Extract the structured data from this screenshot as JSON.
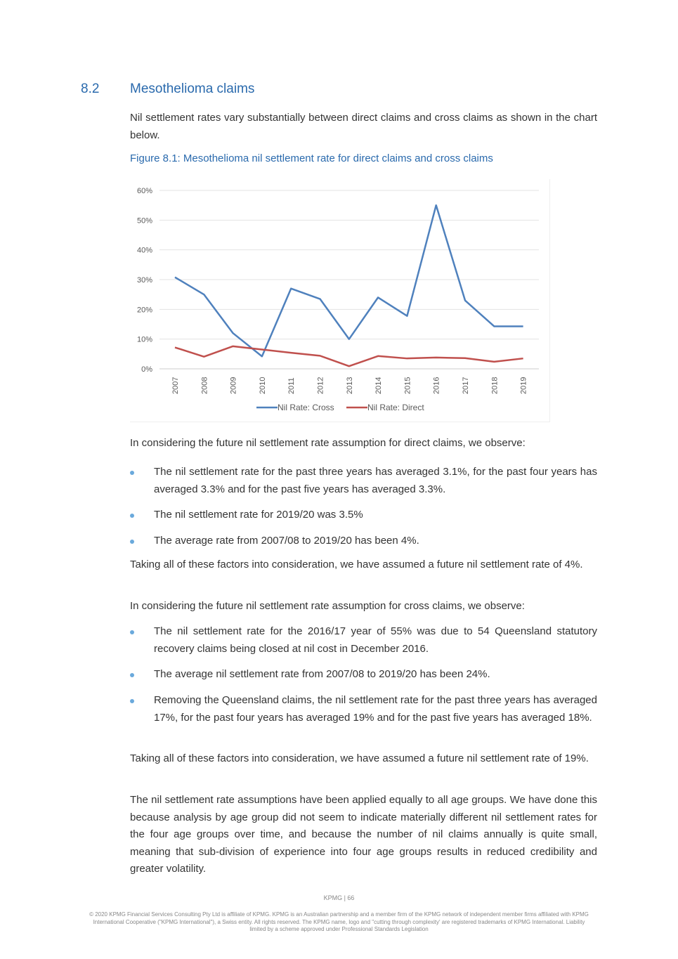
{
  "section": {
    "number": "8.2",
    "title": "Mesothelioma claims"
  },
  "intro": "Nil settlement rates vary substantially between direct claims and cross claims as shown in the chart below.",
  "figure_caption": "Figure 8.1: Mesothelioma nil settlement rate for direct claims and cross claims",
  "chart_data": {
    "type": "line",
    "categories": [
      "2007",
      "2008",
      "2009",
      "2010",
      "2011",
      "2012",
      "2013",
      "2014",
      "2015",
      "2016",
      "2017",
      "2018",
      "2019"
    ],
    "series": [
      {
        "name": "Nil Rate: Cross",
        "color": "#4f81bd",
        "values": [
          30.8,
          25,
          12,
          4.2,
          27,
          23.5,
          10,
          24,
          17.8,
          55,
          23,
          14.3,
          14.3
        ]
      },
      {
        "name": "Nil Rate: Direct",
        "color": "#c0504d",
        "values": [
          7.2,
          4.1,
          7.6,
          6.5,
          5.4,
          4.4,
          0.9,
          4.3,
          3.5,
          3.8,
          3.6,
          2.4,
          3.5
        ]
      }
    ],
    "yticks": [
      "0%",
      "10%",
      "20%",
      "30%",
      "40%",
      "50%",
      "60%"
    ],
    "ylim": [
      0,
      60
    ],
    "grid": true,
    "legend": "bottom"
  },
  "direct_intro": "In considering the future nil settlement rate assumption for direct claims, we observe:",
  "direct_bullets": [
    "The nil settlement rate for the past three years has averaged 3.1%, for the past four years has averaged 3.3% and for the past five years has averaged 3.3%.",
    "The nil settlement rate for 2019/20 was 3.5%",
    "The average rate from 2007/08 to 2019/20 has been 4%."
  ],
  "direct_conclusion": "Taking all of these factors into consideration, we have assumed a future nil settlement rate of 4%.",
  "cross_intro": "In considering the future nil settlement rate assumption for cross claims, we observe:",
  "cross_bullets": [
    "The nil settlement rate for the 2016/17 year of 55% was due to 54 Queensland statutory recovery claims being closed at nil cost in December 2016.",
    "The average nil settlement rate from 2007/08 to 2019/20 has been 24%.",
    "Removing the Queensland claims, the nil settlement rate for the past three years has averaged 17%, for the past four years has averaged 19% and for the past five years has averaged 18%."
  ],
  "cross_conclusion": "Taking all of these factors into consideration, we have assumed a future nil settlement rate of 19%.",
  "final_paragraph": "The nil settlement rate assumptions have been applied equally to all age groups. We have done this because analysis by age group did not seem to indicate materially different nil settlement rates for the four age groups over time, and because the number of nil claims annually is quite small, meaning that sub-division of experience into four age groups results in reduced credibility and greater volatility.",
  "footer": {
    "page": "KPMG  |  66",
    "legal": "© 2020 KPMG Financial Services Consulting Pty Ltd is affiliate of KPMG. KPMG is an Australian partnership and a member firm of the KPMG network of independent member firms affiliated with KPMG International Cooperative (\"KPMG International\"), a Swiss entity. All rights reserved. The KPMG name, logo and \"cutting through complexity' are registered trademarks of KPMG International. Liability limited by a scheme approved under Professional Standards Legislation"
  }
}
